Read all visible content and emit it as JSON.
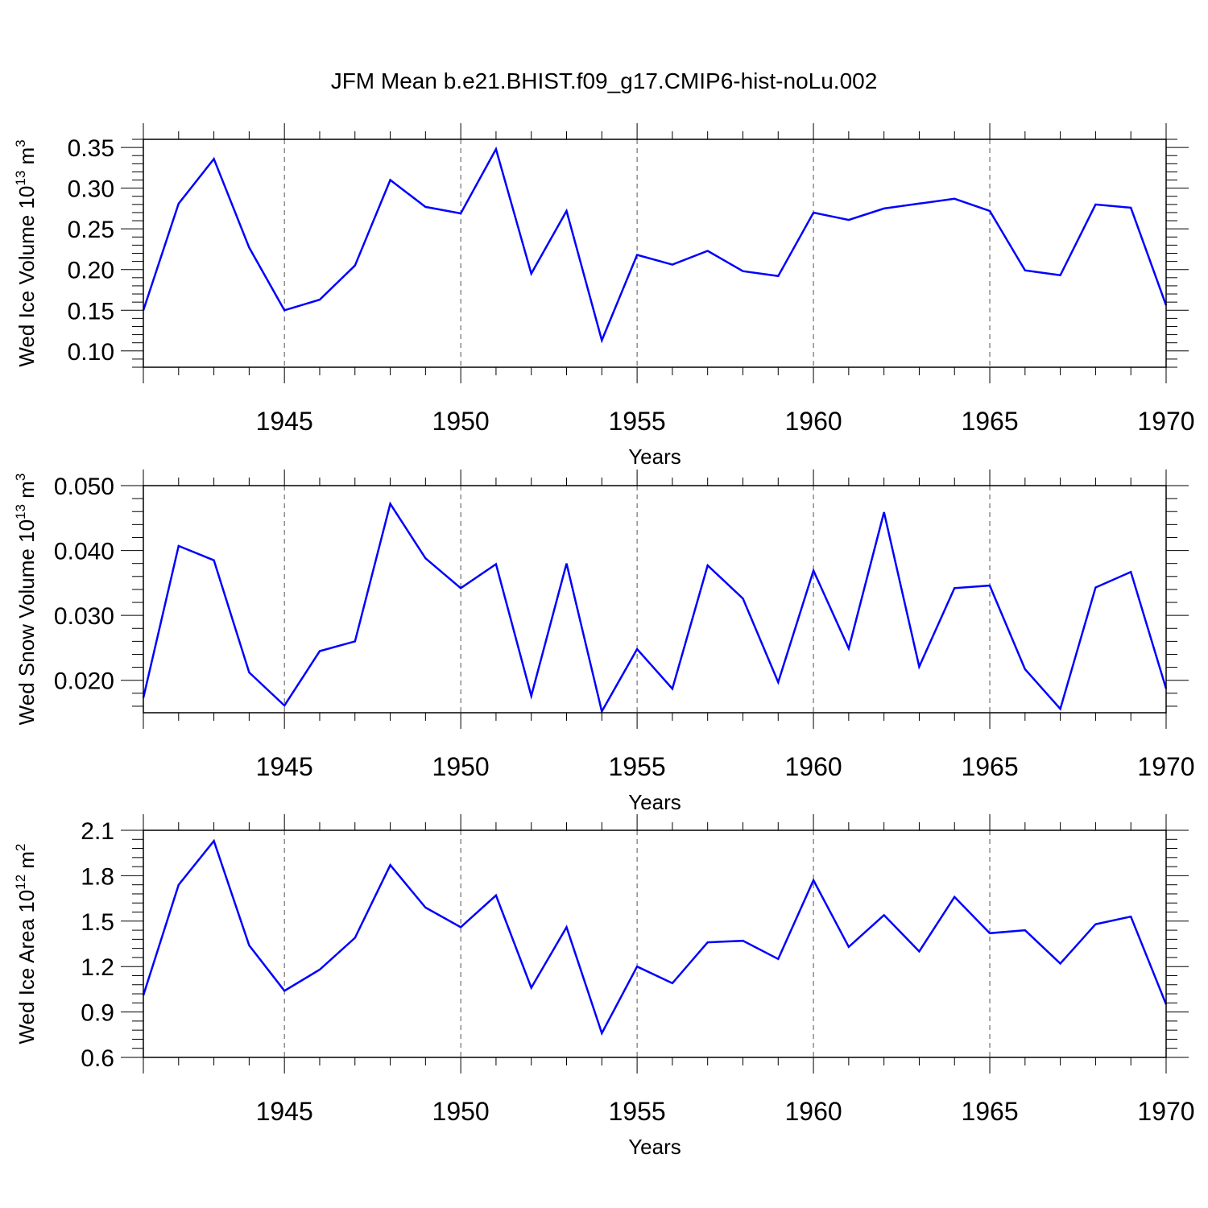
{
  "title": "JFM Mean b.e21.BHIST.f09_g17.CMIP6-hist-noLu.002",
  "colors": {
    "line": "#0000ff",
    "axis": "#000000",
    "grid": "#555555"
  },
  "chart_data": [
    {
      "type": "line",
      "name": "ice-volume",
      "ylabel": {
        "main": "Wed Ice Volume 10",
        "exp": "13",
        "unit": " m",
        "unit_exp": "3"
      },
      "xlabel": "Years",
      "xlim": [
        1941,
        1970
      ],
      "ylim": [
        0.08,
        0.36
      ],
      "grid": "x-dashed",
      "xticks": [
        "1945",
        "1950",
        "1955",
        "1960",
        "1965",
        "1970"
      ],
      "yticks": [
        "0.10",
        "0.15",
        "0.20",
        "0.25",
        "0.30",
        "0.35"
      ],
      "series": [
        {
          "name": "Wed Ice Volume",
          "x": [
            1941,
            1942,
            1943,
            1944,
            1945,
            1946,
            1947,
            1948,
            1949,
            1950,
            1951,
            1952,
            1953,
            1954,
            1955,
            1956,
            1957,
            1958,
            1959,
            1960,
            1961,
            1962,
            1963,
            1964,
            1965,
            1966,
            1967,
            1968,
            1969,
            1970
          ],
          "values": [
            0.15,
            0.281,
            0.336,
            0.227,
            0.15,
            0.163,
            0.205,
            0.31,
            0.277,
            0.269,
            0.348,
            0.195,
            0.272,
            0.113,
            0.218,
            0.206,
            0.223,
            0.198,
            0.192,
            0.27,
            0.261,
            0.275,
            0.281,
            0.287,
            0.272,
            0.199,
            0.193,
            0.28,
            0.276,
            0.156
          ]
        }
      ]
    },
    {
      "type": "line",
      "name": "snow-volume",
      "ylabel": {
        "main": "Wed Snow Volume 10",
        "exp": "13",
        "unit": " m",
        "unit_exp": "3"
      },
      "xlabel": "Years",
      "xlim": [
        1941,
        1970
      ],
      "ylim": [
        0.015,
        0.05
      ],
      "grid": "x-dashed",
      "xticks": [
        "1945",
        "1950",
        "1955",
        "1960",
        "1965",
        "1970"
      ],
      "yticks": [
        "0.020",
        "0.030",
        "0.040",
        "0.050"
      ],
      "series": [
        {
          "name": "Wed Snow Volume",
          "x": [
            1941,
            1942,
            1943,
            1944,
            1945,
            1946,
            1947,
            1948,
            1949,
            1950,
            1951,
            1952,
            1953,
            1954,
            1955,
            1956,
            1957,
            1958,
            1959,
            1960,
            1961,
            1962,
            1963,
            1964,
            1965,
            1966,
            1967,
            1968,
            1969,
            1970
          ],
          "values": [
            0.0173,
            0.0407,
            0.0385,
            0.0212,
            0.0161,
            0.0245,
            0.026,
            0.0472,
            0.0388,
            0.0342,
            0.0379,
            0.0176,
            0.038,
            0.0152,
            0.0248,
            0.0187,
            0.0377,
            0.0326,
            0.0197,
            0.0369,
            0.0249,
            0.0459,
            0.0221,
            0.0342,
            0.0346,
            0.0217,
            0.0156,
            0.0343,
            0.0367,
            0.0187
          ]
        }
      ]
    },
    {
      "type": "line",
      "name": "ice-area",
      "ylabel": {
        "main": "Wed Ice Area 10",
        "exp": "12",
        "unit": " m",
        "unit_exp": "2"
      },
      "xlabel": "Years",
      "xlim": [
        1941,
        1970
      ],
      "ylim": [
        0.6,
        2.1
      ],
      "grid": "x-dashed",
      "xticks": [
        "1945",
        "1950",
        "1955",
        "1960",
        "1965",
        "1970"
      ],
      "yticks": [
        "0.6",
        "0.9",
        "1.2",
        "1.5",
        "1.8",
        "2.1"
      ],
      "series": [
        {
          "name": "Wed Ice Area",
          "x": [
            1941,
            1942,
            1943,
            1944,
            1945,
            1946,
            1947,
            1948,
            1949,
            1950,
            1951,
            1952,
            1953,
            1954,
            1955,
            1956,
            1957,
            1958,
            1959,
            1960,
            1961,
            1962,
            1963,
            1964,
            1965,
            1966,
            1967,
            1968,
            1969,
            1970
          ],
          "values": [
            1.01,
            1.74,
            2.03,
            1.34,
            1.04,
            1.18,
            1.39,
            1.87,
            1.59,
            1.46,
            1.67,
            1.06,
            1.46,
            0.76,
            1.2,
            1.09,
            1.36,
            1.37,
            1.25,
            1.77,
            1.33,
            1.54,
            1.3,
            1.66,
            1.42,
            1.44,
            1.22,
            1.48,
            1.53,
            0.95
          ]
        }
      ]
    }
  ]
}
